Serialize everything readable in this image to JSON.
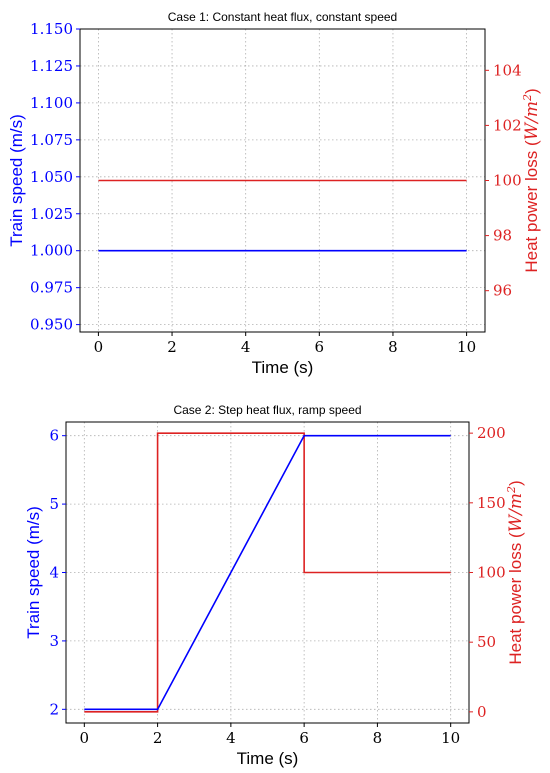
{
  "colors": {
    "speed": "#0000ff",
    "heat": "#dd2222",
    "axis": "#000000"
  },
  "chart_data": [
    {
      "type": "line",
      "title": "Case 1: Constant heat flux, constant speed",
      "xlabel": "Time (s)",
      "ylabel_left": "Train speed (m/s)",
      "ylabel_right_prefix": "Heat power loss (",
      "ylabel_right_math": "W/m",
      "ylabel_right_sup": "2",
      "ylabel_right_suffix": ")",
      "xlim": [
        -0.5,
        10.5
      ],
      "ylim_left": [
        0.945,
        1.15
      ],
      "ylim_right": [
        94.5,
        105.5
      ],
      "xticks": [
        0,
        2,
        4,
        6,
        8,
        10
      ],
      "xtick_labels": [
        "0",
        "2",
        "4",
        "6",
        "8",
        "10"
      ],
      "yticks_left": [
        0.95,
        0.975,
        1.0,
        1.025,
        1.05,
        1.075,
        1.1,
        1.125,
        1.15
      ],
      "ytick_labels_left": [
        "0.950",
        "0.975",
        "1.000",
        "1.025",
        "1.050",
        "1.075",
        "1.100",
        "1.125",
        "1.150"
      ],
      "yticks_right": [
        96,
        98,
        100,
        102,
        104
      ],
      "ytick_labels_right": [
        "96",
        "98",
        "100",
        "102",
        "104"
      ],
      "grid": true,
      "series": [
        {
          "axis": "left",
          "color": "#0000ff",
          "x": [
            0,
            10
          ],
          "y": [
            1.0,
            1.0
          ]
        },
        {
          "axis": "right",
          "color": "#dd2222",
          "x": [
            0,
            10
          ],
          "y": [
            100,
            100
          ]
        }
      ]
    },
    {
      "type": "line",
      "title": "Case 2: Step heat flux, ramp speed",
      "xlabel": "Time (s)",
      "ylabel_left": "Train speed (m/s)",
      "ylabel_right_prefix": "Heat power loss (",
      "ylabel_right_math": "W/m",
      "ylabel_right_sup": "2",
      "ylabel_right_suffix": ")",
      "xlim": [
        -0.5,
        10.5
      ],
      "ylim_left": [
        1.8,
        6.2
      ],
      "ylim_right": [
        -8,
        208
      ],
      "xticks": [
        0,
        2,
        4,
        6,
        8,
        10
      ],
      "xtick_labels": [
        "0",
        "2",
        "4",
        "6",
        "8",
        "10"
      ],
      "yticks_left": [
        2,
        3,
        4,
        5,
        6
      ],
      "ytick_labels_left": [
        "2",
        "3",
        "4",
        "5",
        "6"
      ],
      "yticks_right": [
        0,
        50,
        100,
        150,
        200
      ],
      "ytick_labels_right": [
        "0",
        "50",
        "100",
        "150",
        "200"
      ],
      "grid": true,
      "series": [
        {
          "axis": "right",
          "color": "#dd2222",
          "x": [
            0,
            2,
            2,
            6,
            6,
            10
          ],
          "y": [
            0,
            0,
            200,
            200,
            100,
            100
          ]
        },
        {
          "axis": "left",
          "color": "#0000ff",
          "x": [
            0,
            2,
            6,
            10
          ],
          "y": [
            2,
            2,
            6,
            6
          ]
        }
      ]
    }
  ]
}
